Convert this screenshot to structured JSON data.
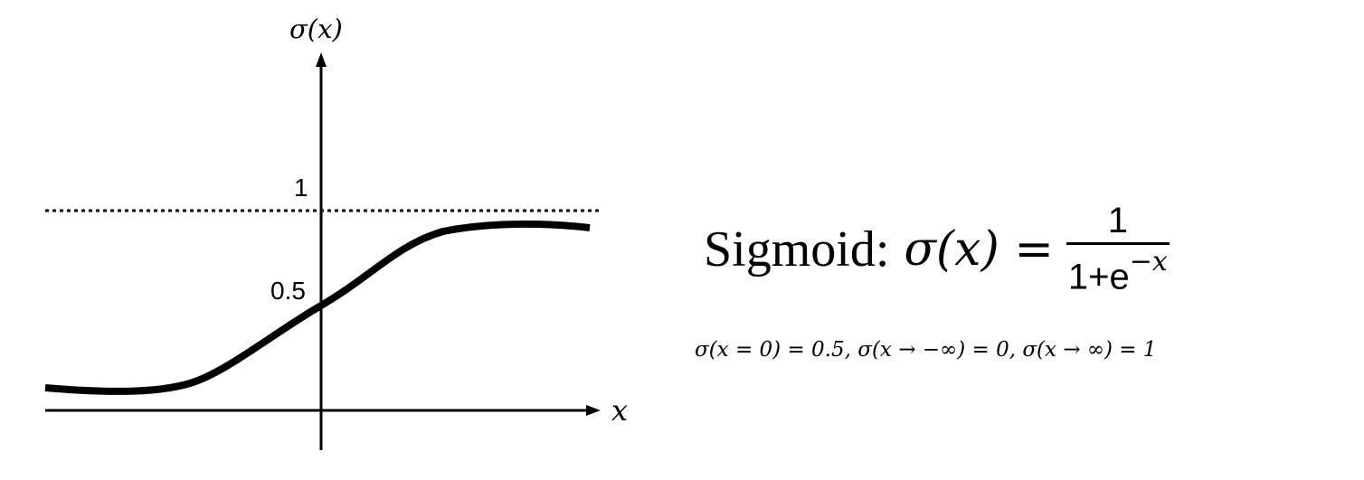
{
  "diagram": {
    "y_axis_label": "σ(x)",
    "x_axis_label": "x",
    "tick_one": "1",
    "tick_half": "0.5"
  },
  "formula": {
    "prefix": "Sigmoid:",
    "lhs": "σ(x) =",
    "numerator": "1",
    "denominator_base": "1+e",
    "denominator_exponent": "−x"
  },
  "properties": "σ(x = 0) = 0.5, σ(x → −∞) = 0, σ(x → ∞) = 1"
}
